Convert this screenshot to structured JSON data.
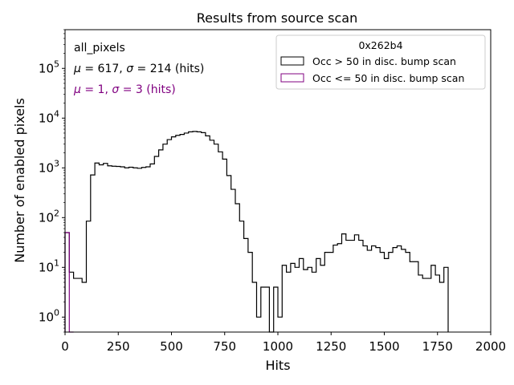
{
  "chart_data": {
    "type": "bar",
    "title": "Results from source scan",
    "xlabel": "Hits",
    "ylabel": "Number of enabled pixels",
    "xlim": [
      0,
      2000
    ],
    "ylim": [
      0.5,
      600000
    ],
    "yscale": "log",
    "xticks": [
      0,
      250,
      500,
      750,
      1000,
      1250,
      1500,
      1750,
      2000
    ],
    "xtick_labels": [
      "0",
      "250",
      "500",
      "750",
      "1000",
      "1250",
      "1500",
      "1750",
      "2000"
    ],
    "yticks": [
      1,
      10,
      100,
      1000,
      10000,
      100000
    ],
    "ytick_bases": [
      "10",
      "10",
      "10",
      "10",
      "10",
      "10"
    ],
    "ytick_exps": [
      "0",
      "1",
      "2",
      "3",
      "4",
      "5"
    ],
    "grid": false,
    "legend_placement": "top-right",
    "legend_title": "0x262b4",
    "annotations": {
      "name": "all_pixels",
      "stats_series1": {
        "mu": "μ",
        "eq1": " = 617, ",
        "sigma": "σ",
        "eq2": " = 214 (hits)"
      },
      "stats_series2": {
        "mu": "μ",
        "eq1": " = 1, ",
        "sigma": "σ",
        "eq2": " = 3 (hits)"
      }
    },
    "bin_width": 20,
    "series": [
      {
        "name": "Occ > 50 in disc. bump scan",
        "color": "#000000",
        "values": [
          50,
          8,
          6,
          6,
          5,
          85,
          720,
          1250,
          1150,
          1230,
          1100,
          1080,
          1070,
          1050,
          1000,
          1030,
          1000,
          980,
          1020,
          1050,
          1200,
          1700,
          2300,
          3000,
          3700,
          4200,
          4500,
          4700,
          5000,
          5300,
          5400,
          5300,
          5100,
          4400,
          3600,
          3000,
          2100,
          1500,
          700,
          370,
          190,
          85,
          38,
          20,
          5,
          1,
          4,
          4,
          0,
          4,
          1,
          11,
          8,
          12,
          10,
          15,
          9,
          10,
          8,
          15,
          11,
          20,
          20,
          28,
          30,
          47,
          35,
          35,
          45,
          35,
          27,
          22,
          27,
          25,
          20,
          15,
          20,
          25,
          27,
          23,
          20,
          13,
          13,
          7,
          6,
          6,
          11,
          7,
          5,
          10
        ]
      },
      {
        "name": "Occ <= 50 in disc. bump scan",
        "color": "#800080",
        "values": [
          50,
          0
        ]
      }
    ]
  }
}
